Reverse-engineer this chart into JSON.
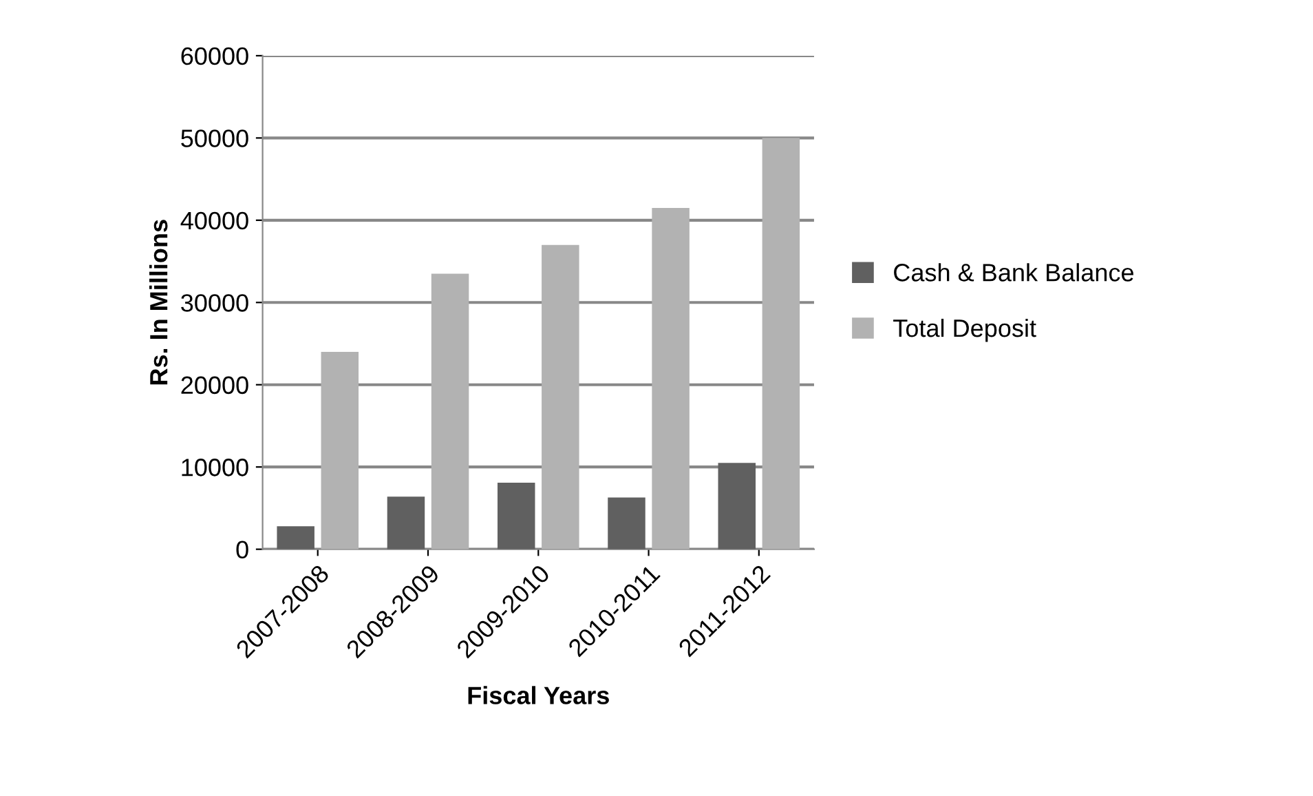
{
  "chart_data": {
    "type": "bar",
    "xlabel": "Fiscal Years",
    "ylabel": "Rs. In Millions",
    "categories": [
      "2007-2008",
      "2008-2009",
      "2009-2010",
      "2010-2011",
      "2011-2012"
    ],
    "series": [
      {
        "name": "Cash & Bank Balance",
        "color": "#606060",
        "values": [
          2800,
          6400,
          8100,
          6300,
          10500
        ]
      },
      {
        "name": "Total Deposit",
        "color": "#b2b2b2",
        "values": [
          24000,
          33500,
          37000,
          41500,
          50000
        ]
      }
    ],
    "ylim": [
      0,
      60000
    ],
    "yticks": [
      0,
      10000,
      20000,
      30000,
      40000,
      50000,
      60000
    ],
    "grid": "y",
    "legend": "right"
  }
}
